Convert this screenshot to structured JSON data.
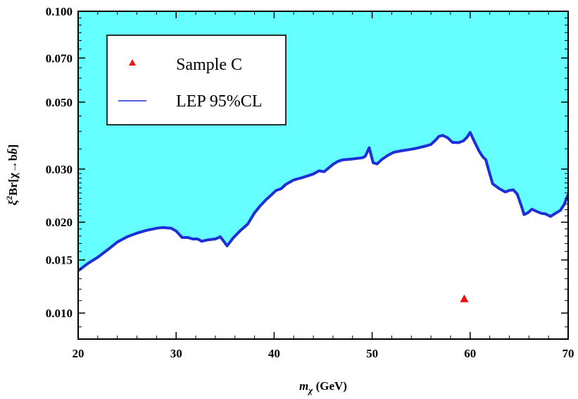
{
  "chart_data": {
    "type": "line",
    "title": "",
    "xlabel": {
      "main": "m",
      "sub": "χ",
      "unit": " (GeV)"
    },
    "ylabel": {
      "xi": "ξ",
      "sup": "2",
      "rest": "Br[χ→b",
      "bbar": "b̄",
      "close": "]"
    },
    "xlim": [
      20,
      70
    ],
    "ylim": [
      0.0082,
      0.1
    ],
    "yscale": "log",
    "x_ticks": [
      "20",
      "30",
      "40",
      "50",
      "60",
      "70"
    ],
    "y_ticks": [
      "0.010",
      "0.015",
      "0.020",
      "0.030",
      "0.050",
      "0.070",
      "0.100"
    ],
    "x_tick_values": [
      20,
      30,
      40,
      50,
      60,
      70
    ],
    "y_tick_values": [
      0.01,
      0.015,
      0.02,
      0.03,
      0.05,
      0.07,
      0.1
    ],
    "legend_position": "top-left",
    "colors": {
      "excluded_fill": "#66ffff",
      "limit_line": "#1f2fd6",
      "marker": "#ee1111"
    },
    "series": [
      {
        "name": "LEP 95%CL",
        "kind": "line",
        "x": [
          20,
          21,
          22,
          23,
          24,
          25,
          26,
          27,
          28,
          28.6,
          29.5,
          30,
          30.6,
          31.2,
          31.7,
          32.2,
          32.6,
          33.3,
          34,
          34.5,
          34.8,
          35.2,
          35.8,
          36.5,
          37.3,
          38,
          38.6,
          39.2,
          39.7,
          40.2,
          40.7,
          41.2,
          42,
          43,
          44,
          44.6,
          45.1,
          46,
          46.5,
          47,
          48,
          49,
          49.3,
          49.7,
          50.1,
          50.5,
          51,
          51.6,
          52.2,
          53,
          54,
          54.6,
          55.5,
          56,
          56.5,
          56.8,
          57.2,
          57.7,
          58.2,
          58.8,
          59.3,
          59.7,
          60,
          60.4,
          60.9,
          61.3,
          61.6,
          61.9,
          62.3,
          63,
          63.6,
          64,
          64.4,
          64.8,
          65.2,
          65.5,
          65.9,
          66.3,
          66.8,
          67.3,
          67.7,
          68.2,
          68.8,
          69.2,
          69.6,
          70
        ],
        "y": [
          0.0138,
          0.0146,
          0.0153,
          0.0162,
          0.0172,
          0.0179,
          0.0184,
          0.0188,
          0.0191,
          0.0192,
          0.0191,
          0.0187,
          0.0178,
          0.0178,
          0.0176,
          0.0176,
          0.0173,
          0.0175,
          0.0176,
          0.0179,
          0.0174,
          0.0167,
          0.0177,
          0.0187,
          0.0197,
          0.0215,
          0.0227,
          0.0238,
          0.0246,
          0.0255,
          0.0258,
          0.0267,
          0.0276,
          0.0282,
          0.0289,
          0.0296,
          0.0294,
          0.0311,
          0.0318,
          0.0322,
          0.0324,
          0.0327,
          0.0331,
          0.0353,
          0.0315,
          0.0312,
          0.0323,
          0.0333,
          0.0341,
          0.0345,
          0.0349,
          0.0352,
          0.0358,
          0.0362,
          0.0375,
          0.0385,
          0.0388,
          0.0381,
          0.0368,
          0.0367,
          0.0372,
          0.0383,
          0.0397,
          0.0372,
          0.0345,
          0.0329,
          0.0322,
          0.0297,
          0.0268,
          0.0258,
          0.0252,
          0.0255,
          0.0256,
          0.0248,
          0.0228,
          0.0212,
          0.0215,
          0.0221,
          0.0217,
          0.0214,
          0.0213,
          0.0209,
          0.0215,
          0.0219,
          0.0229,
          0.0247
        ]
      },
      {
        "name": "Sample C",
        "kind": "scatter",
        "x": [
          59.4
        ],
        "y": [
          0.0111
        ]
      }
    ]
  }
}
